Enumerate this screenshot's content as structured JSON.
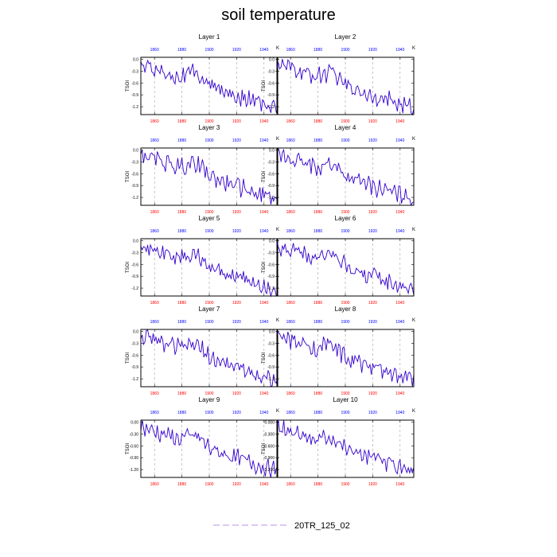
{
  "title": "soil temperature",
  "colors": {
    "line": "#3300cc",
    "frame": "#000000",
    "grid": "#a0a0a0",
    "top_ticks": "#0000ff",
    "bottom_ticks": "#ff0000",
    "legend_line": "#c8a8f0"
  },
  "legend": {
    "label": "20TR_125_02",
    "placement": "bottom-center"
  },
  "chart_data": [
    {
      "type": "line",
      "title": "Layer 1",
      "ylabel": "TSOI",
      "unit": "K",
      "xlim": [
        1850,
        1950
      ],
      "ylim": [
        -1.4,
        0.05
      ],
      "yticks": [
        "0.0",
        "-0.3",
        "-0.6",
        "-0.9",
        "-1.2"
      ],
      "xticks": [
        "1860",
        "1880",
        "1900",
        "1920",
        "1940"
      ],
      "grid_x": true,
      "series": [
        {
          "name": "20TR_125_02",
          "x": [
            1850,
            1950
          ],
          "y": [
            -0.12,
            -1.25
          ]
        }
      ]
    },
    {
      "type": "line",
      "title": "Layer 2",
      "ylabel": "TSOI",
      "unit": "K",
      "xlim": [
        1850,
        1950
      ],
      "ylim": [
        -1.4,
        0.05
      ],
      "yticks": [
        "0.0",
        "-0.3",
        "-0.6",
        "-0.9",
        "-1.2"
      ],
      "xticks": [
        "1860",
        "1880",
        "1900",
        "1920",
        "1940"
      ],
      "grid_x": true,
      "series": [
        {
          "name": "20TR_125_02",
          "x": [
            1850,
            1950
          ],
          "y": [
            -0.12,
            -1.25
          ]
        }
      ]
    },
    {
      "type": "line",
      "title": "Layer 3",
      "ylabel": "TSOI",
      "unit": "K",
      "xlim": [
        1850,
        1950
      ],
      "ylim": [
        -1.4,
        0.05
      ],
      "yticks": [
        "0.0",
        "-0.3",
        "-0.6",
        "-0.9",
        "-1.2"
      ],
      "xticks": [
        "1860",
        "1880",
        "1900",
        "1920",
        "1940"
      ],
      "grid_x": true,
      "series": [
        {
          "name": "20TR_125_02",
          "x": [
            1850,
            1950
          ],
          "y": [
            -0.12,
            -1.25
          ]
        }
      ]
    },
    {
      "type": "line",
      "title": "Layer 4",
      "ylabel": "TSOI",
      "unit": "K",
      "xlim": [
        1850,
        1950
      ],
      "ylim": [
        -1.4,
        0.05
      ],
      "yticks": [
        "0.0",
        "-0.3",
        "-0.6",
        "-0.9",
        "-1.2"
      ],
      "xticks": [
        "1860",
        "1880",
        "1900",
        "1920",
        "1940"
      ],
      "grid_x": true,
      "series": [
        {
          "name": "20TR_125_02",
          "x": [
            1850,
            1950
          ],
          "y": [
            -0.12,
            -1.25
          ]
        }
      ]
    },
    {
      "type": "line",
      "title": "Layer 5",
      "ylabel": "TSOI",
      "unit": "K",
      "xlim": [
        1850,
        1950
      ],
      "ylim": [
        -1.4,
        0.05
      ],
      "yticks": [
        "0.0",
        "-0.3",
        "-0.6",
        "-0.9",
        "-1.2"
      ],
      "xticks": [
        "1860",
        "1880",
        "1900",
        "1920",
        "1940"
      ],
      "grid_x": true,
      "series": [
        {
          "name": "20TR_125_02",
          "x": [
            1850,
            1950
          ],
          "y": [
            -0.12,
            -1.25
          ]
        }
      ]
    },
    {
      "type": "line",
      "title": "Layer 6",
      "ylabel": "TSOI",
      "unit": "K",
      "xlim": [
        1850,
        1950
      ],
      "ylim": [
        -1.4,
        0.05
      ],
      "yticks": [
        "0.0",
        "-0.3",
        "-0.6",
        "-0.9",
        "-1.2"
      ],
      "xticks": [
        "1860",
        "1880",
        "1900",
        "1920",
        "1940"
      ],
      "grid_x": true,
      "series": [
        {
          "name": "20TR_125_02",
          "x": [
            1850,
            1950
          ],
          "y": [
            -0.12,
            -1.25
          ]
        }
      ]
    },
    {
      "type": "line",
      "title": "Layer 7",
      "ylabel": "TSOI",
      "unit": "K",
      "xlim": [
        1850,
        1950
      ],
      "ylim": [
        -1.4,
        0.05
      ],
      "yticks": [
        "0.0",
        "-0.3",
        "-0.6",
        "-0.9",
        "-1.2"
      ],
      "xticks": [
        "1860",
        "1880",
        "1900",
        "1920",
        "1940"
      ],
      "grid_x": true,
      "series": [
        {
          "name": "20TR_125_02",
          "x": [
            1850,
            1950
          ],
          "y": [
            -0.12,
            -1.25
          ]
        }
      ]
    },
    {
      "type": "line",
      "title": "Layer 8",
      "ylabel": "TSOI",
      "unit": "K",
      "xlim": [
        1850,
        1950
      ],
      "ylim": [
        -1.4,
        0.05
      ],
      "yticks": [
        "0.0",
        "-0.3",
        "-0.6",
        "-0.9",
        "-1.2"
      ],
      "xticks": [
        "1860",
        "1880",
        "1900",
        "1920",
        "1940"
      ],
      "grid_x": true,
      "series": [
        {
          "name": "20TR_125_02",
          "x": [
            1850,
            1950
          ],
          "y": [
            -0.12,
            -1.25
          ]
        }
      ]
    },
    {
      "type": "line",
      "title": "Layer 9",
      "ylabel": "TSOI",
      "unit": "K",
      "xlim": [
        1850,
        1950
      ],
      "ylim": [
        -1.4,
        0.05
      ],
      "yticks": [
        "0.00",
        "-0.30",
        "-0.60",
        "-0.90",
        "-1.20"
      ],
      "xticks": [
        "1860",
        "1880",
        "1900",
        "1920",
        "1940"
      ],
      "grid_x": true,
      "series": [
        {
          "name": "20TR_125_02",
          "x": [
            1850,
            1950
          ],
          "y": [
            -0.12,
            -1.25
          ]
        }
      ]
    },
    {
      "type": "line",
      "title": "Layer 10",
      "ylabel": "TSOI",
      "unit": "K",
      "xlim": [
        1850,
        1950
      ],
      "ylim": [
        -1.4,
        0.05
      ],
      "yticks": [
        "0.000",
        "-0.300",
        "-0.600",
        "-0.900",
        "-1.200"
      ],
      "xticks": [
        "1860",
        "1880",
        "1900",
        "1920",
        "1940"
      ],
      "grid_x": true,
      "series": [
        {
          "name": "20TR_125_02",
          "x": [
            1850,
            1950
          ],
          "y": [
            -0.12,
            -1.25
          ]
        }
      ]
    }
  ]
}
